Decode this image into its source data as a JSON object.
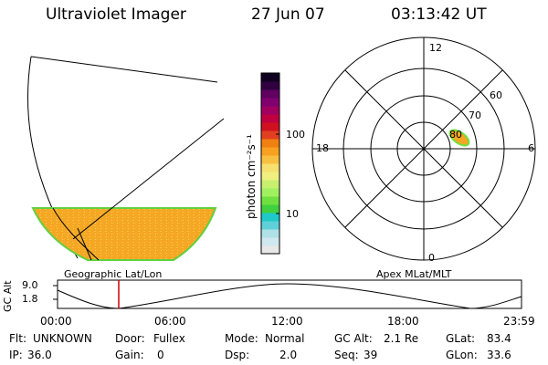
{
  "header": {
    "instrument": "Ultraviolet Imager",
    "date": "27 Jun 07",
    "time": "03:13:42 UT"
  },
  "colorbar": {
    "unit_label": "photon cm⁻²s⁻¹",
    "ticks": [
      "100",
      "10"
    ],
    "colors": [
      "#e8e8e8",
      "#d0e8f0",
      "#b0e0e8",
      "#60d0d8",
      "#20c8c8",
      "#40d040",
      "#70e040",
      "#a0f060",
      "#c8f070",
      "#f0f080",
      "#f8e070",
      "#f8c040",
      "#f8a020",
      "#f08010",
      "#e04020",
      "#d01020",
      "#c00040",
      "#a00060",
      "#800070",
      "#600060",
      "#300040",
      "#100020"
    ]
  },
  "map_labels": {
    "left": "Geographic Lat/Lon",
    "right": "Apex  MLat/MLT"
  },
  "polar": {
    "mlt_labels": {
      "top": "12",
      "bottom": "0",
      "left": "18",
      "right": "6"
    },
    "lat_labels": [
      "60",
      "70",
      "80"
    ]
  },
  "timeline": {
    "axis_label": "GC Alt",
    "y_ticks": [
      "9.0",
      "1.8"
    ],
    "x_ticks": [
      "00:00",
      "06:00",
      "12:00",
      "18:00",
      "23:59"
    ],
    "cursor_color": "#cc0000"
  },
  "info": {
    "row1": [
      {
        "label": "Flt:",
        "value": "UNKNOWN"
      },
      {
        "label": "Door:",
        "value": "Fullex"
      },
      {
        "label": "Mode:",
        "value": "Normal"
      },
      {
        "label": "GC Alt:",
        "value": "2.1 Re"
      },
      {
        "label": "GLat:",
        "value": "83.4"
      }
    ],
    "row2": [
      {
        "label": "IP:",
        "value": "36.0"
      },
      {
        "label": "Gain:",
        "value": "0"
      },
      {
        "label": "Dsp:",
        "value": "2.0"
      },
      {
        "label": "Seq:",
        "value": "39"
      },
      {
        "label": "GLon:",
        "value": "33.6"
      }
    ]
  }
}
